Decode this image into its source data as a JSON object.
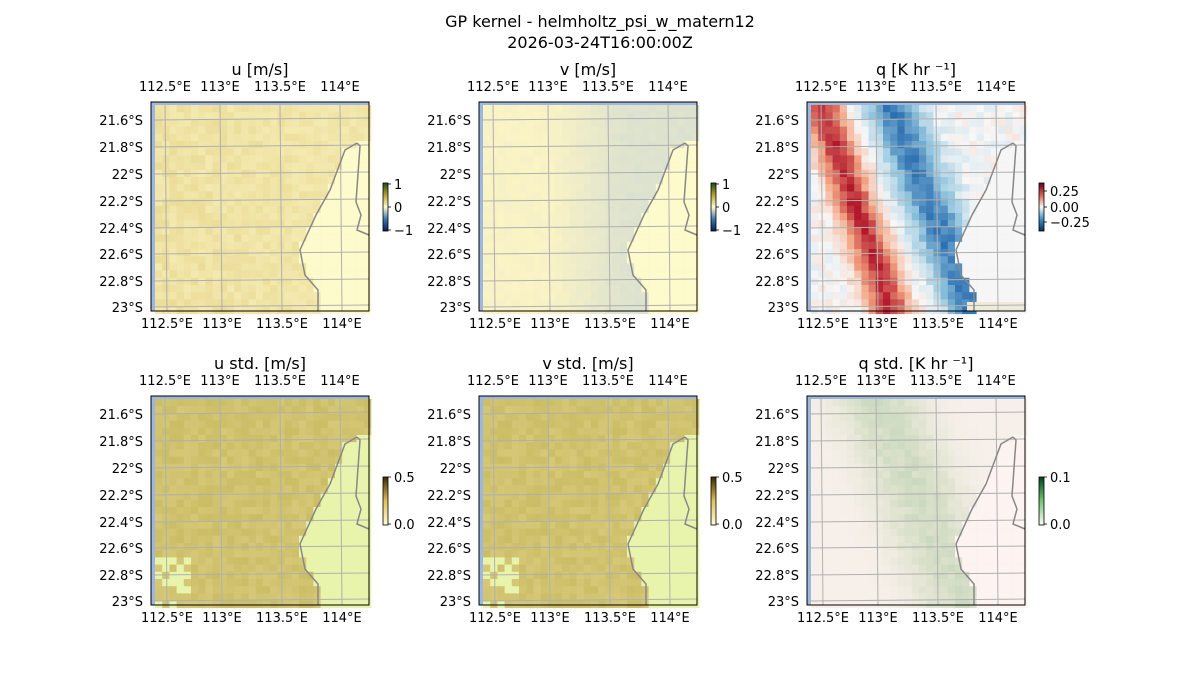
{
  "figure": {
    "title_line1": "GP kernel - helmholtz_psi_w_matern12",
    "title_line2": "2026-03-24T16:00:00Z"
  },
  "chart_data": {
    "type": "heatmap",
    "lon_ticks": [
      "112.5°E",
      "113°E",
      "113.5°E",
      "114°E"
    ],
    "lat_ticks": [
      "21.6°S",
      "21.8°S",
      "22°S",
      "22.2°S",
      "22.4°S",
      "22.6°S",
      "22.8°S",
      "23°S"
    ],
    "panels": [
      {
        "id": "u",
        "title": "u [m/s]",
        "colorbar_ticks": [
          "1",
          "0",
          "−1"
        ],
        "range": [
          -1,
          1
        ],
        "cmap": "diverging-green-yellow-blue"
      },
      {
        "id": "v",
        "title": "v [m/s]",
        "colorbar_ticks": [
          "1",
          "0",
          "−1"
        ],
        "range": [
          -1,
          1
        ],
        "cmap": "diverging-green-yellow-blue"
      },
      {
        "id": "q",
        "title": "q [K hr ⁻¹]",
        "colorbar_ticks": [
          "0.25",
          "0.00",
          "−0.25"
        ],
        "range": [
          -0.35,
          0.35
        ],
        "cmap": "RdBu"
      },
      {
        "id": "ustd",
        "title": "u std. [m/s]",
        "colorbar_ticks": [
          "0.5",
          "0.0"
        ],
        "range": [
          0,
          0.5
        ],
        "cmap": "sequential-olive"
      },
      {
        "id": "vstd",
        "title": "v std. [m/s]",
        "colorbar_ticks": [
          "0.5",
          "0.0"
        ],
        "range": [
          0,
          0.5
        ],
        "cmap": "sequential-olive"
      },
      {
        "id": "qstd",
        "title": "q std. [K hr ⁻¹]",
        "colorbar_ticks": [
          "0.1",
          "0.0"
        ],
        "range": [
          0,
          0.1
        ],
        "cmap": "sequential-green"
      }
    ]
  }
}
